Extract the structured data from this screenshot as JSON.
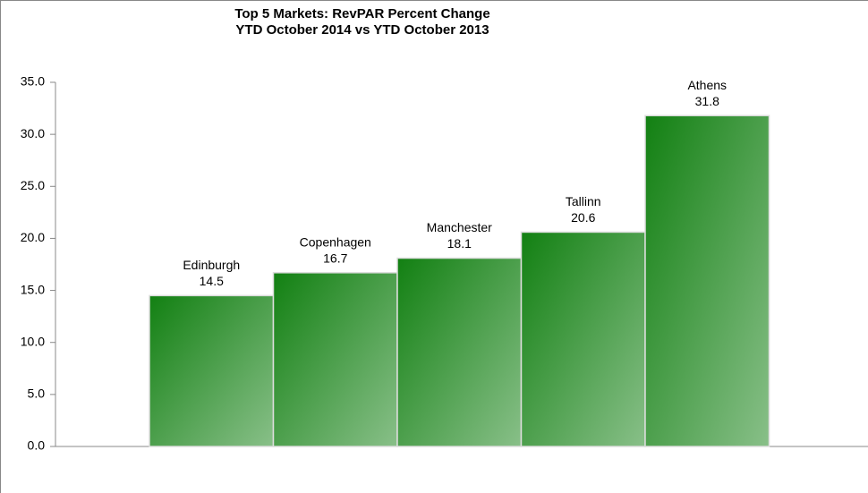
{
  "chart_data": {
    "type": "bar",
    "title": "Top 5 Markets: RevPAR Percent Change",
    "subtitle": "YTD October 2014 vs YTD October 2013",
    "categories": [
      "Edinburgh",
      "Copenhagen",
      "Manchester",
      "Tallinn",
      "Athens"
    ],
    "values": [
      14.5,
      16.7,
      18.1,
      20.6,
      31.8
    ],
    "color": "#128012",
    "ylim": [
      0,
      35
    ],
    "yticks": [
      {
        "value": 0,
        "label": "0.0"
      },
      {
        "value": 5,
        "label": "5.0"
      },
      {
        "value": 10,
        "label": "10.0"
      },
      {
        "value": 15,
        "label": "15.0"
      },
      {
        "value": 20,
        "label": "20.0"
      },
      {
        "value": 25,
        "label": "25.0"
      },
      {
        "value": 30,
        "label": "30.0"
      },
      {
        "value": 35,
        "label": "35.0"
      }
    ],
    "grid": false
  }
}
